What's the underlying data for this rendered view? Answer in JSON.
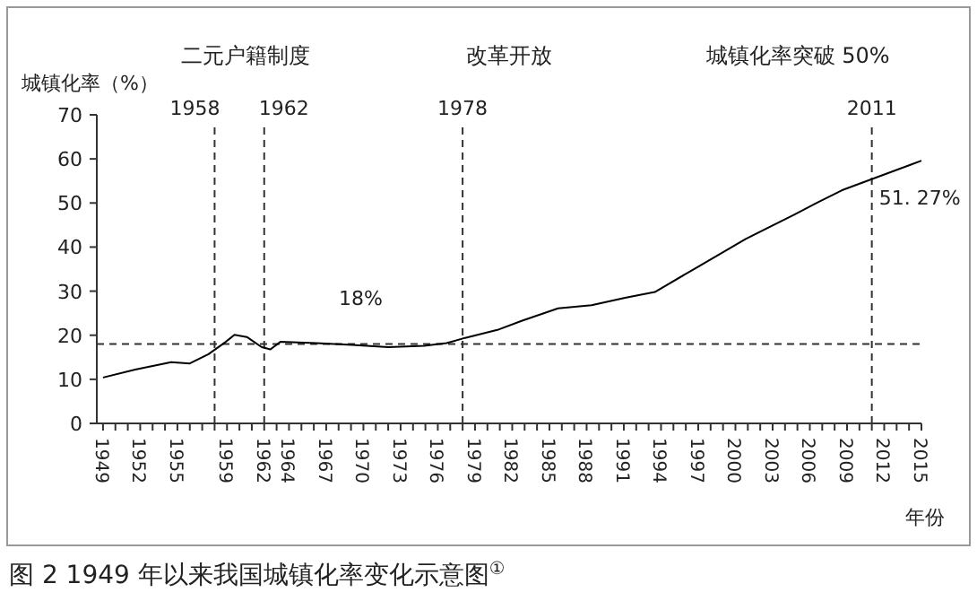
{
  "chart_data": {
    "type": "line",
    "title": "图 2 1949 年以来我国城镇化率变化示意图$^{①}$",
    "ylabel": "城镇化率（%）",
    "xlabel": "年份",
    "x": [
      1949,
      1951.6,
      1954.5,
      1956,
      1957.5,
      1958.9,
      1959.6,
      1960.6,
      1961.8,
      1962.5,
      1963.3,
      1966.2,
      1969.1,
      1972,
      1974.9,
      1976.7,
      1978.2,
      1980.8,
      1982.8,
      1985.7,
      1988.4,
      1991.1,
      1993.5,
      1996.9,
      2000.8,
      2004.7,
      2006.6,
      2008.6,
      2015
    ],
    "series": [
      {
        "color": "#000000",
        "values": [
          10.4,
          12.2,
          13.9,
          13.6,
          15.7,
          18.5,
          20.1,
          19.6,
          17.3,
          16.8,
          18.5,
          18.2,
          17.8,
          17.3,
          17.6,
          18.2,
          19.4,
          21.2,
          23.3,
          26.1,
          26.8,
          28.5,
          29.8,
          35.4,
          41.8,
          47.3,
          50.1,
          52.9,
          59.6
        ]
      }
    ],
    "xlim": [
      1948.5,
      2015
    ],
    "ylim": [
      0,
      70
    ],
    "yticks": [
      0,
      10,
      20,
      30,
      40,
      50,
      60,
      70
    ],
    "xticks": [
      {
        "value": 1949,
        "label": "1949"
      },
      {
        "value": 1950,
        "label": null
      },
      {
        "value": 1951,
        "label": null
      },
      {
        "value": 1952,
        "label": "1952"
      },
      {
        "value": 1953,
        "label": null
      },
      {
        "value": 1954,
        "label": null
      },
      {
        "value": 1955,
        "label": "1955"
      },
      {
        "value": 1956,
        "label": null
      },
      {
        "value": 1957,
        "label": null
      },
      {
        "value": 1959,
        "label": "1959"
      },
      {
        "value": 1958,
        "label": null
      },
      {
        "value": 1960,
        "label": null
      },
      {
        "value": 1961,
        "label": null
      },
      {
        "value": 1962,
        "label": "1962"
      },
      {
        "value": 1963,
        "label": null
      },
      {
        "value": 1964,
        "label": "1964"
      },
      {
        "value": 1965,
        "label": null
      },
      {
        "value": 1966,
        "label": null
      },
      {
        "value": 1967,
        "label": "1967"
      },
      {
        "value": 1968,
        "label": null
      },
      {
        "value": 1969,
        "label": null
      },
      {
        "value": 1970,
        "label": "1970"
      },
      {
        "value": 1971,
        "label": null
      },
      {
        "value": 1972,
        "label": null
      },
      {
        "value": 1973,
        "label": "1973"
      },
      {
        "value": 1974,
        "label": null
      },
      {
        "value": 1975,
        "label": null
      },
      {
        "value": 1976,
        "label": "1976"
      },
      {
        "value": 1977,
        "label": null
      },
      {
        "value": 1978,
        "label": null
      },
      {
        "value": 1979,
        "label": "1979"
      },
      {
        "value": 1980,
        "label": null
      },
      {
        "value": 1981,
        "label": null
      },
      {
        "value": 1982,
        "label": "1982"
      },
      {
        "value": 1983,
        "label": null
      },
      {
        "value": 1984,
        "label": null
      },
      {
        "value": 1985,
        "label": "1985"
      },
      {
        "value": 1986,
        "label": null
      },
      {
        "value": 1987,
        "label": null
      },
      {
        "value": 1988,
        "label": "1988"
      },
      {
        "value": 1989,
        "label": null
      },
      {
        "value": 1990,
        "label": null
      },
      {
        "value": 1991,
        "label": "1991"
      },
      {
        "value": 1992,
        "label": null
      },
      {
        "value": 1993,
        "label": null
      },
      {
        "value": 1994,
        "label": "1994"
      },
      {
        "value": 1995,
        "label": null
      },
      {
        "value": 1996,
        "label": null
      },
      {
        "value": 1997,
        "label": "1997"
      },
      {
        "value": 1998,
        "label": null
      },
      {
        "value": 1999,
        "label": null
      },
      {
        "value": 2000,
        "label": "2000"
      },
      {
        "value": 2001,
        "label": null
      },
      {
        "value": 2002,
        "label": null
      },
      {
        "value": 2003,
        "label": "2003"
      },
      {
        "value": 2004,
        "label": null
      },
      {
        "value": 2005,
        "label": null
      },
      {
        "value": 2006,
        "label": "2006"
      },
      {
        "value": 2007,
        "label": null
      },
      {
        "value": 2008,
        "label": null
      },
      {
        "value": 2009,
        "label": "2009"
      },
      {
        "value": 2010,
        "label": null
      },
      {
        "value": 2011,
        "label": null
      },
      {
        "value": 2012,
        "label": "2012"
      },
      {
        "value": 2013,
        "label": null
      },
      {
        "value": 2014,
        "label": null
      },
      {
        "value": 2015,
        "label": "2015"
      }
    ],
    "ref_lines": [
      {
        "axis": "x",
        "value": 1958,
        "label": "1958",
        "line_style": "dashed"
      },
      {
        "axis": "x",
        "value": 1962,
        "label": "1962",
        "line_style": "dashed"
      },
      {
        "axis": "x",
        "value": 1978,
        "label": "1978",
        "line_style": "dashed"
      },
      {
        "axis": "x",
        "value": 2011,
        "label": "2011",
        "line_style": "dashed"
      },
      {
        "axis": "y",
        "value": 18,
        "label": "18%",
        "line_style": "dashed"
      }
    ],
    "annotations": [
      "二元户籍制度",
      "改革开放",
      "城镇化率突破 50%",
      {
        "text": "51. 27%",
        "x": 2011,
        "y": 51.27
      }
    ],
    "grid": false,
    "marker": "none",
    "line_style": "solid"
  }
}
